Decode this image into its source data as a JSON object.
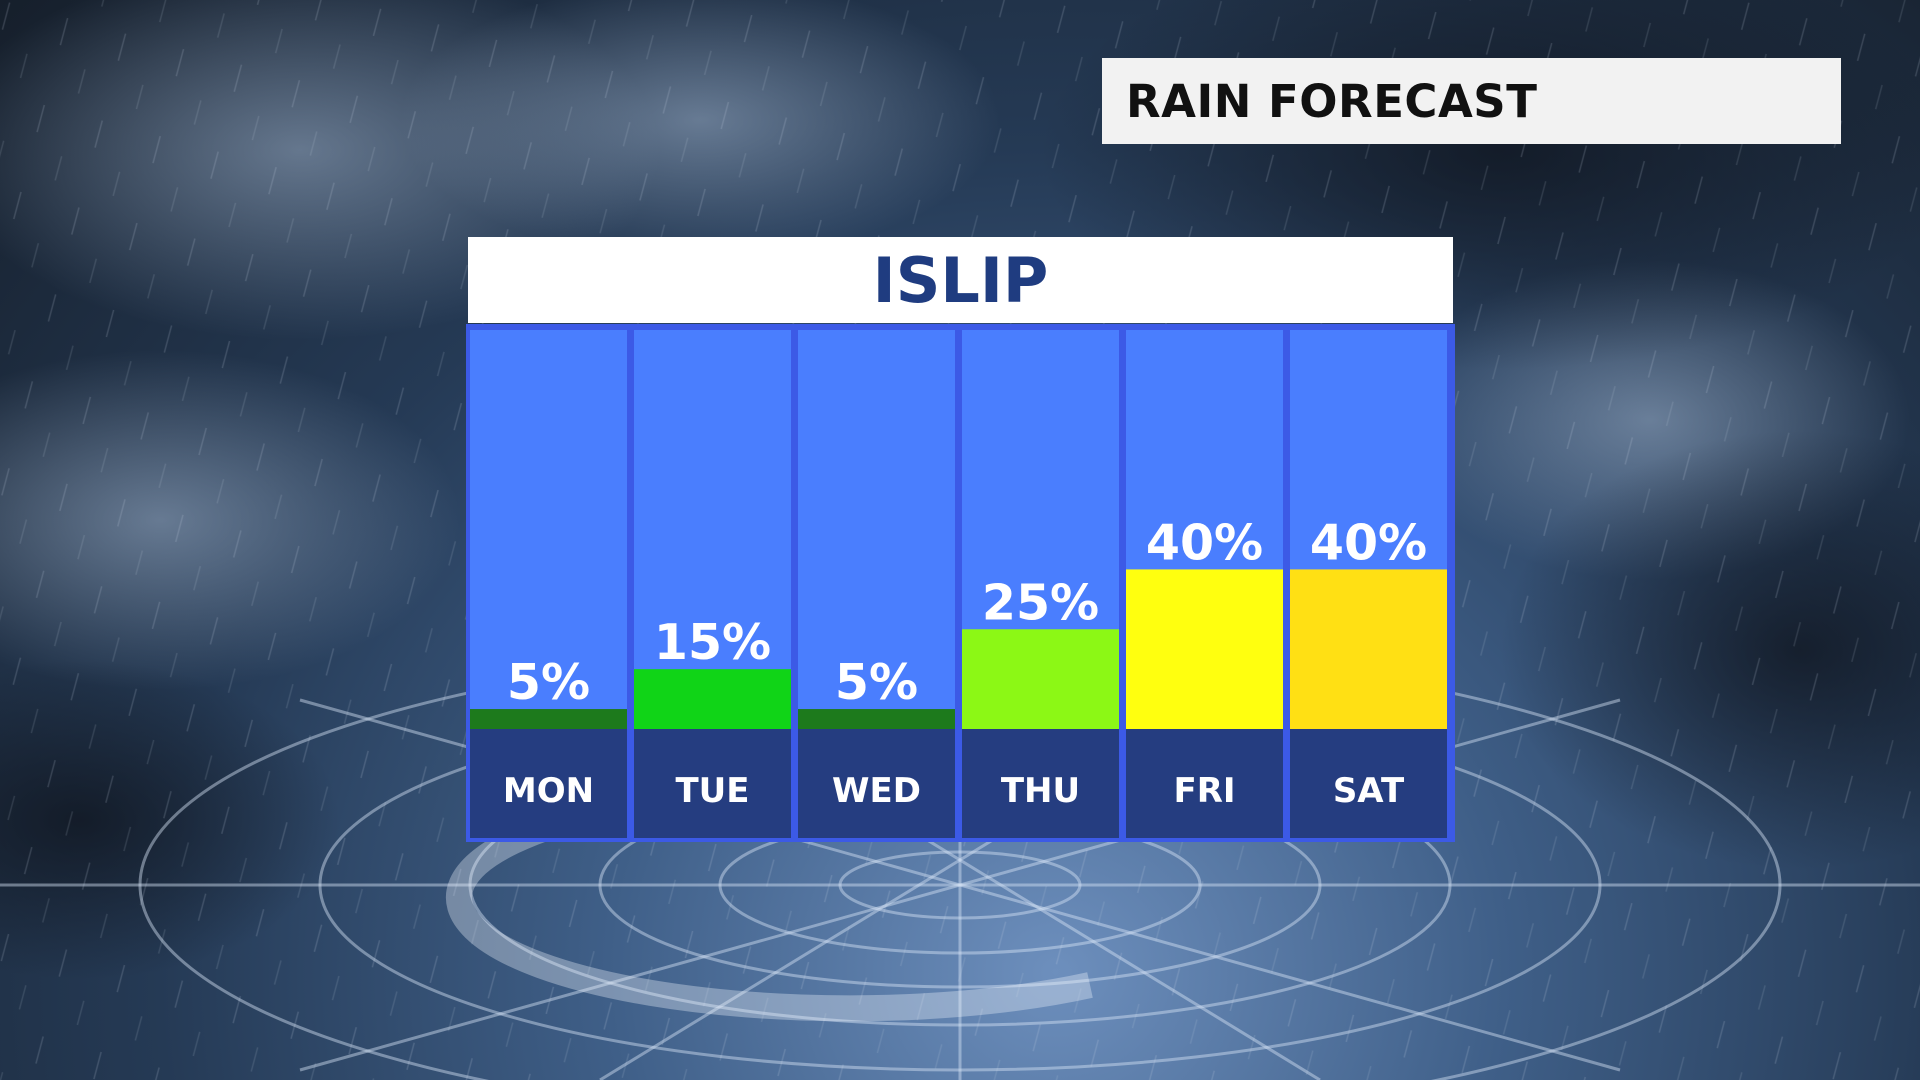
{
  "header": {
    "title": "RAIN FORECAST"
  },
  "chart_data": {
    "type": "bar",
    "title": "ISLIP",
    "categories": [
      "MON",
      "TUE",
      "WED",
      "THU",
      "FRI",
      "SAT"
    ],
    "values": [
      5,
      15,
      5,
      25,
      40,
      40
    ],
    "value_labels": [
      "5%",
      "15%",
      "5%",
      "25%",
      "40%",
      "40%"
    ],
    "ylim": [
      0,
      100
    ],
    "xlabel": "",
    "ylabel": "",
    "bar_colors": [
      "#1d7a1c",
      "#10d417",
      "#1d7a1c",
      "#8cf815",
      "#ffff0f",
      "#ffe014"
    ],
    "column_color": "#4a7efe",
    "base_color": "#253d80",
    "frame_color": "#3c5ae6"
  }
}
